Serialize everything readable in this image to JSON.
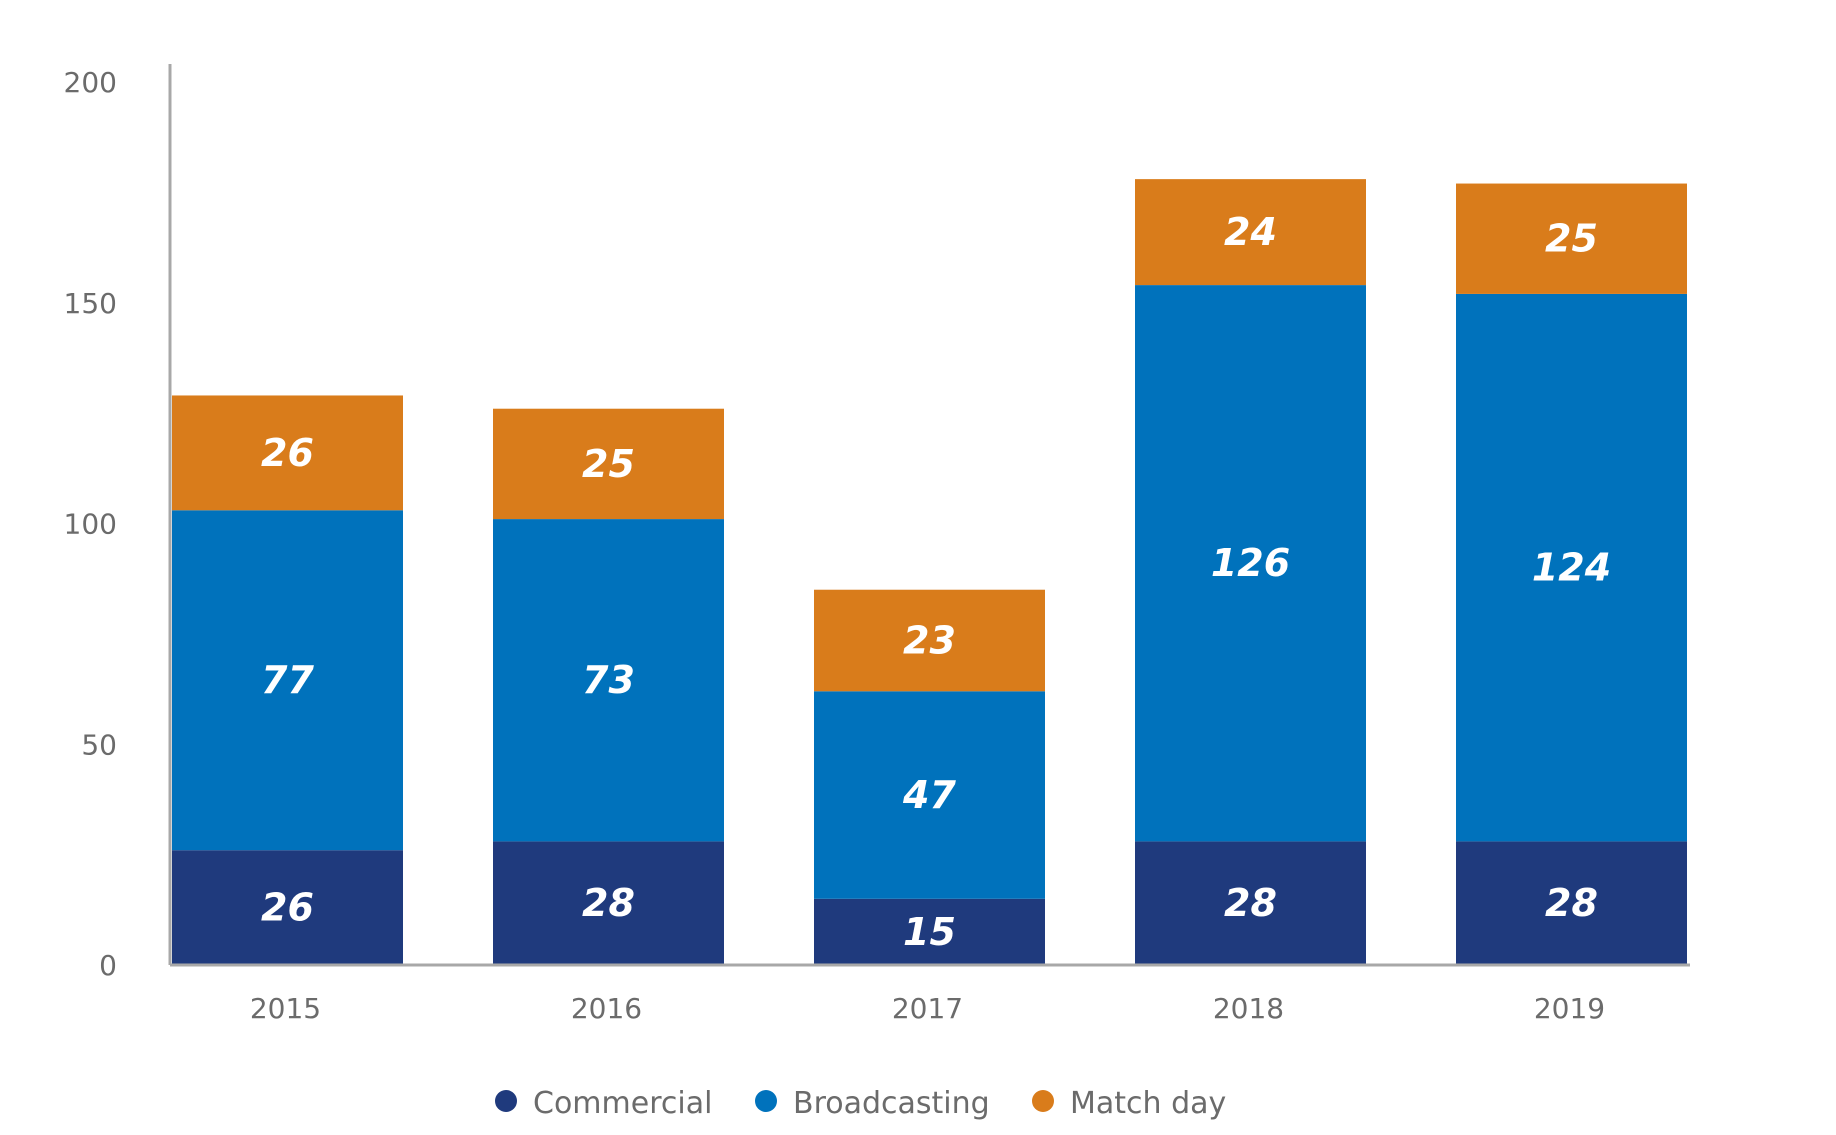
{
  "chart_data": {
    "type": "bar",
    "stacked": true,
    "title": "",
    "xlabel": "",
    "ylabel": "",
    "ylim": [
      0,
      200
    ],
    "yticks": [
      0,
      50,
      100,
      150,
      200
    ],
    "grid": false,
    "legend_position": "bottom-center",
    "categories": [
      "2015",
      "2016",
      "2017",
      "2018",
      "2019"
    ],
    "series": [
      {
        "name": "Commercial",
        "color": "#1f3a7d",
        "values": [
          26,
          28,
          15,
          28,
          28
        ]
      },
      {
        "name": "Broadcasting",
        "color": "#0072bc",
        "values": [
          77,
          73,
          47,
          126,
          124
        ]
      },
      {
        "name": "Match day",
        "color": "#d97c1b",
        "values": [
          26,
          25,
          23,
          24,
          25
        ]
      }
    ]
  }
}
